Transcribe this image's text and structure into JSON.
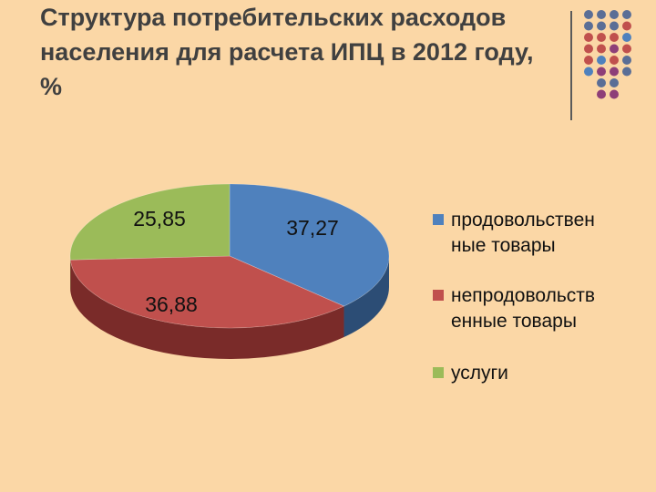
{
  "slide": {
    "title": "Структура потребительских расходов населения для расчета ИПЦ в 2012 году, %"
  },
  "decor": {
    "dot_colors": [
      "#5a6e96",
      "#c0504d",
      "#8e3f78",
      "#4f81bd"
    ]
  },
  "chart_data": {
    "type": "pie",
    "title": "",
    "categories": [
      "продовольственные товары",
      "непродовольственные товары",
      "услуги"
    ],
    "values": [
      37.27,
      36.88,
      25.85
    ],
    "value_labels": [
      "37,27",
      "36,88",
      "25,85"
    ],
    "legend_lines": [
      [
        "продовольствен",
        "ные товары"
      ],
      [
        "непродовольств",
        "енные товары"
      ],
      [
        "услуги"
      ]
    ],
    "colors": [
      "#4f81bd",
      "#c0504d",
      "#9bbb59"
    ],
    "side_colors": [
      "#2c4d75",
      "#7a2b29",
      "#5f7530"
    ],
    "legend_position": "right",
    "style": "3d"
  }
}
